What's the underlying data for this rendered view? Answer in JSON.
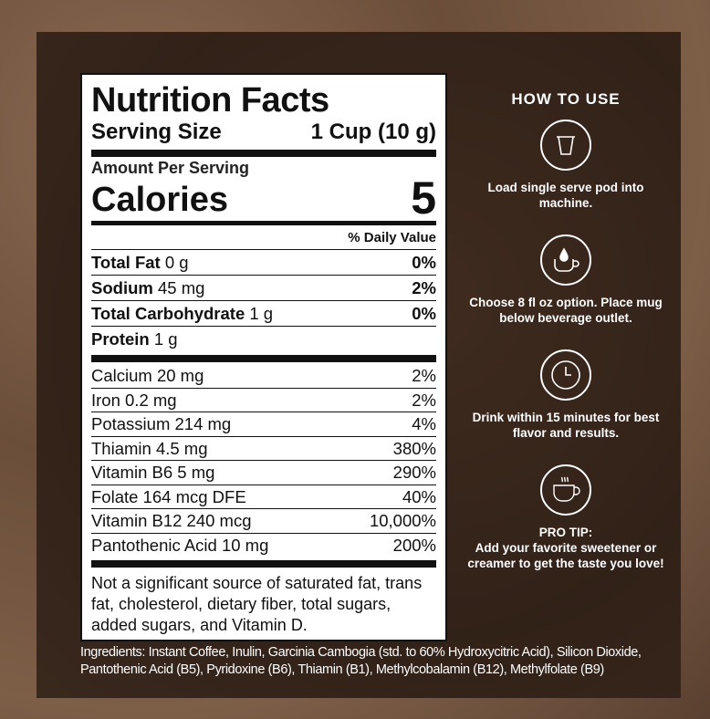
{
  "label": {
    "title": "Nutrition Facts",
    "serving_label": "Serving Size",
    "serving_value": "1 Cup (10 g)",
    "amount_per_serving": "Amount Per Serving",
    "calories_label": "Calories",
    "calories_value": "5",
    "daily_value_header": "% Daily Value",
    "macros": [
      {
        "name": "Total Fat",
        "amount": "0 g",
        "dv": "0%"
      },
      {
        "name": "Sodium",
        "amount": "45 mg",
        "dv": "2%"
      },
      {
        "name": "Total Carbohydrate",
        "amount": "1 g",
        "dv": "0%"
      },
      {
        "name": "Protein",
        "amount": "1 g",
        "dv": ""
      }
    ],
    "vitamins": [
      {
        "name": "Calcium 20 mg",
        "dv": "2%"
      },
      {
        "name": "Iron 0.2 mg",
        "dv": "2%"
      },
      {
        "name": "Potassium 214 mg",
        "dv": "4%"
      },
      {
        "name": "Thiamin 4.5 mg",
        "dv": "380%"
      },
      {
        "name": "Vitamin B6 5 mg",
        "dv": "290%"
      },
      {
        "name": "Folate 164 mcg DFE",
        "dv": "40%"
      },
      {
        "name": "Vitamin B12 240 mcg",
        "dv": "10,000%"
      },
      {
        "name": "Pantothenic Acid 10 mg",
        "dv": "200%"
      }
    ],
    "footnote": "Not a significant source of saturated fat, trans fat, cholesterol, dietary fiber, total sugars, added sugars, and Vitamin D."
  },
  "how_to_use": {
    "title": "HOW TO USE",
    "steps": [
      {
        "icon": "pod-icon",
        "text": "Load single serve pod into machine."
      },
      {
        "icon": "mug-drop-icon",
        "text": "Choose 8 fl oz option. Place mug below beverage outlet."
      },
      {
        "icon": "clock-icon",
        "text": "Drink within 15 minutes for best flavor and results."
      },
      {
        "icon": "steaming-cup-icon",
        "heading": "PRO TIP:",
        "text": "Add your favorite sweetener or creamer to get the taste you love!"
      }
    ]
  },
  "ingredients": "Ingredients: Instant Coffee, Inulin, Garcinia Cambogia (std. to 60% Hydroxycitric Acid), Silicon Dioxide, Pantothenic Acid (B5), Pyridoxine (B6), Thiamin (B1), Methylcobalamin (B12), Methylfolate (B9)"
}
